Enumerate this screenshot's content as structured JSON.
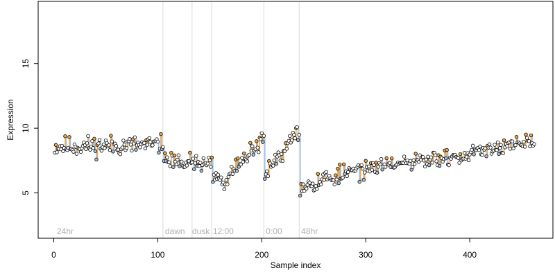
{
  "chart_data": {
    "type": "scatter",
    "title": "",
    "xlabel": "Sample index",
    "ylabel": "Expression",
    "xlim": [
      -15,
      480
    ],
    "ylim": [
      1.5,
      19.8
    ],
    "xticks": [
      0,
      100,
      200,
      300,
      400
    ],
    "yticks": [
      5,
      10,
      15
    ],
    "grid": false,
    "legend": "none",
    "colors": {
      "point_fill_up": "#f2a640",
      "point_fill_down": "#9fc0e6",
      "point_fill_neutral": "#ffffff",
      "segment_up": "#f2a640",
      "segment_down": "#9fc0e6",
      "point_stroke": "#000000",
      "boundary": "#d9d9d9",
      "annotation": "#b0b0b0"
    },
    "boundaries": [
      {
        "x": 105,
        "label": ""
      },
      {
        "x": 133,
        "label": ""
      },
      {
        "x": 152,
        "label": ""
      },
      {
        "x": 202,
        "label": ""
      },
      {
        "x": 236,
        "label": ""
      }
    ],
    "annotations": [
      {
        "x": 3,
        "label": "24hr"
      },
      {
        "x": 107,
        "label": "dawn"
      },
      {
        "x": 133,
        "label": "dusk"
      },
      {
        "x": 153,
        "label": "12:00"
      },
      {
        "x": 204,
        "label": "0:00"
      },
      {
        "x": 238,
        "label": "48hr"
      }
    ],
    "segments": [
      {
        "from": 1,
        "to": 105,
        "start": 8.6,
        "end": 8.7,
        "spread": 0.55,
        "seed": 11
      },
      {
        "from": 106,
        "to": 152,
        "start": 7.7,
        "end": 7.1,
        "spread": 0.5,
        "seed": 23
      },
      {
        "from": 153,
        "to": 165,
        "start": 6.4,
        "end": 5.6,
        "spread": 0.35,
        "seed": 31
      },
      {
        "from": 166,
        "to": 202,
        "start": 6.3,
        "end": 9.2,
        "spread": 0.45,
        "seed": 37
      },
      {
        "from": 203,
        "to": 236,
        "start": 6.6,
        "end": 9.8,
        "spread": 0.45,
        "seed": 43
      },
      {
        "from": 237,
        "to": 300,
        "start": 5.6,
        "end": 6.9,
        "spread": 0.55,
        "seed": 53
      },
      {
        "from": 301,
        "to": 400,
        "start": 6.9,
        "end": 7.9,
        "spread": 0.45,
        "seed": 61
      },
      {
        "from": 401,
        "to": 462,
        "start": 8.2,
        "end": 9.0,
        "spread": 0.4,
        "seed": 71
      }
    ]
  }
}
